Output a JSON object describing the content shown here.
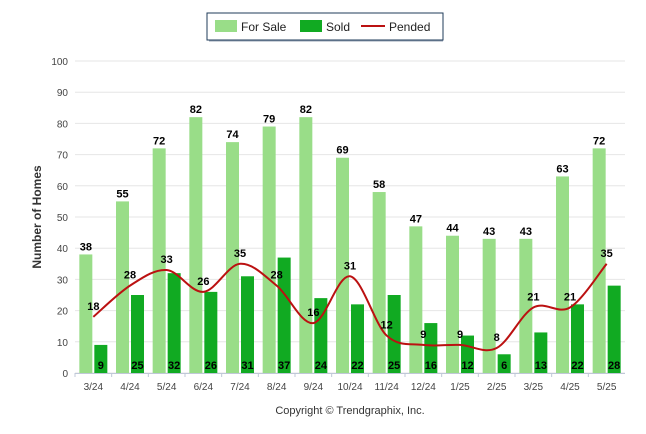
{
  "chart_data": {
    "type": "bar",
    "ylabel": "Number of Homes",
    "xlabel": "",
    "ylim": [
      0,
      100
    ],
    "yticks": [
      0,
      10,
      20,
      30,
      40,
      50,
      60,
      70,
      80,
      90,
      100
    ],
    "grid": true,
    "legend_position": "top-center",
    "categories": [
      "3/24",
      "4/24",
      "5/24",
      "6/24",
      "7/24",
      "8/24",
      "9/24",
      "10/24",
      "11/24",
      "12/24",
      "1/25",
      "2/25",
      "3/25",
      "4/25",
      "5/25"
    ],
    "series": [
      {
        "name": "For Sale",
        "type": "bar",
        "color": "#99dd88",
        "values": [
          38,
          55,
          72,
          82,
          74,
          79,
          82,
          69,
          58,
          47,
          44,
          43,
          43,
          63,
          72
        ]
      },
      {
        "name": "Sold",
        "type": "bar",
        "color": "#11aa22",
        "values": [
          9,
          25,
          32,
          26,
          31,
          37,
          24,
          22,
          25,
          16,
          12,
          6,
          13,
          22,
          28
        ]
      },
      {
        "name": "Pended",
        "type": "line",
        "color": "#bb1111",
        "values": [
          18,
          28,
          33,
          26,
          35,
          28,
          16,
          31,
          12,
          9,
          9,
          8,
          21,
          21,
          35
        ]
      }
    ]
  },
  "footer": {
    "copyright": "Copyright © Trendgraphix, Inc."
  }
}
